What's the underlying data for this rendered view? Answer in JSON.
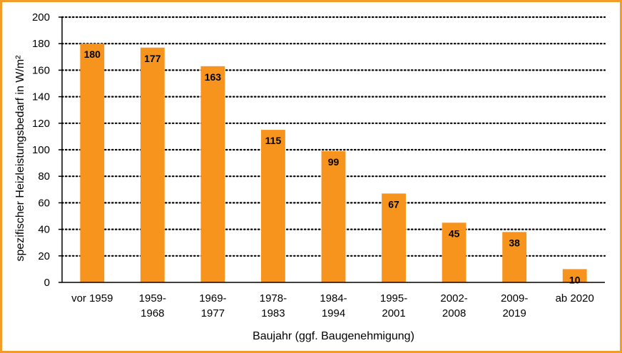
{
  "colors": {
    "bar": "#f7941d",
    "frame": "#f39c2a",
    "grid": "#000000"
  },
  "chart_data": {
    "type": "bar",
    "title": "",
    "xlabel": "Baujahr (ggf. Baugenehmigung)",
    "ylabel": "spezifischer Heizleistungsbedarf in W/m²",
    "ylim": [
      0,
      200
    ],
    "yticks": [
      0,
      20,
      40,
      60,
      80,
      100,
      120,
      140,
      160,
      180,
      200
    ],
    "grid": true,
    "categories": [
      [
        "vor 1959"
      ],
      [
        "1959-",
        "1968"
      ],
      [
        "1969-",
        "1977"
      ],
      [
        "1978-",
        "1983"
      ],
      [
        "1984-",
        "1994"
      ],
      [
        "1995-",
        "2001"
      ],
      [
        "2002-",
        "2008"
      ],
      [
        "2009-",
        "2019"
      ],
      [
        "ab 2020"
      ]
    ],
    "values": [
      180,
      177,
      163,
      115,
      99,
      67,
      45,
      38,
      10
    ],
    "data_labels": [
      "180",
      "177",
      "163",
      "115",
      "99",
      "67",
      "45",
      "38",
      "10"
    ]
  }
}
